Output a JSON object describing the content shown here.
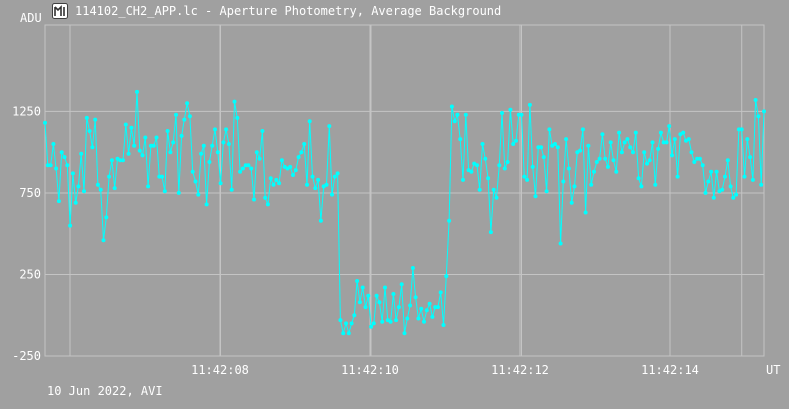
{
  "window": {
    "title": "114102_CH2_APP.lc - Aperture Photometry, Average Background",
    "footer": "10 Jun 2022, AVI"
  },
  "colors": {
    "background": "#a0a0a0",
    "grid": "#c4c4c4",
    "series": "#00ffff",
    "text": "#ffffff"
  },
  "chart_data": {
    "type": "line",
    "title": "114102_CH2_APP.lc - Aperture Photometry, Average Background",
    "ylabel": "ADU",
    "xlabel": "UT",
    "ylim": [
      -250,
      1780
    ],
    "yticks": [
      -250,
      250,
      750,
      1250
    ],
    "xticks": [
      "11:42:08",
      "11:42:10",
      "11:42:12",
      "11:42:14"
    ],
    "xlim": [
      0,
      232
    ],
    "xtick_positions": [
      50,
      100,
      150,
      200
    ],
    "series": [
      {
        "values": [
          1180,
          920,
          920,
          1050,
          900,
          700,
          1000,
          970,
          920,
          550,
          870,
          690,
          790,
          990,
          760,
          1210,
          1130,
          1030,
          1200,
          800,
          770,
          460,
          600,
          850,
          950,
          780,
          960,
          950,
          950,
          1170,
          990,
          1150,
          1040,
          1370,
          1010,
          980,
          1090,
          790,
          1040,
          1040,
          1090,
          850,
          850,
          760,
          1130,
          1000,
          1060,
          1230,
          750,
          1100,
          1200,
          1300,
          1220,
          880,
          820,
          740,
          990,
          1040,
          680,
          940,
          1040,
          1140,
          1000,
          810,
          1060,
          1140,
          1050,
          770,
          1310,
          1210,
          880,
          900,
          920,
          920,
          900,
          710,
          1000,
          960,
          1130,
          720,
          680,
          840,
          800,
          830,
          810,
          950,
          910,
          900,
          910,
          860,
          890,
          970,
          1000,
          1050,
          800,
          1190,
          850,
          780,
          830,
          580,
          790,
          800,
          1160,
          740,
          850,
          870,
          -30,
          -110,
          -50,
          -110,
          -50,
          0,
          210,
          80,
          170,
          50,
          120,
          -70,
          -50,
          120,
          80,
          -40,
          170,
          -30,
          -40,
          130,
          -30,
          50,
          190,
          -110,
          -20,
          60,
          290,
          110,
          -20,
          40,
          -40,
          30,
          70,
          -10,
          50,
          50,
          140,
          -60,
          240,
          580,
          1280,
          1190,
          1230,
          1080,
          830,
          1230,
          890,
          880,
          930,
          920,
          770,
          1050,
          960,
          840,
          510,
          770,
          720,
          920,
          1240,
          900,
          940,
          1260,
          1050,
          1070,
          1230,
          1230,
          850,
          830,
          1290,
          910,
          730,
          1030,
          1030,
          970,
          760,
          1140,
          1040,
          1050,
          1030,
          440,
          820,
          1080,
          900,
          690,
          790,
          1000,
          1010,
          1140,
          630,
          1040,
          800,
          880,
          940,
          960,
          1110,
          960,
          910,
          1060,
          950,
          880,
          1120,
          1000,
          1060,
          1080,
          1030,
          1000,
          1120,
          840,
          790,
          1000,
          930,
          950,
          1060,
          800,
          1020,
          1120,
          1060,
          1060,
          1160,
          980,
          1080,
          850,
          1110,
          1120,
          1070,
          1080,
          1000,
          940,
          960,
          960,
          920,
          750,
          820,
          880,
          720,
          880,
          760,
          770,
          850,
          950,
          790,
          720,
          740,
          1140,
          1140,
          850,
          1080,
          970,
          830,
          1320,
          1220,
          800,
          1250
        ]
      }
    ]
  }
}
